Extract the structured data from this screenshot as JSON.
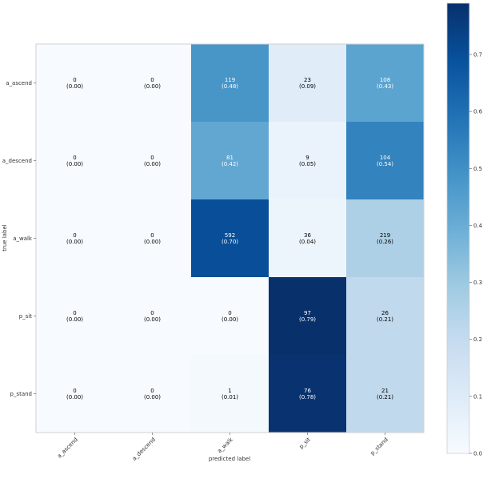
{
  "chart_data": {
    "type": "heatmap",
    "title": "",
    "xlabel": "predicted label",
    "ylabel": "true label",
    "x_categories": [
      "a_ascend",
      "a_descend",
      "a_walk",
      "p_sit",
      "p_stand"
    ],
    "y_categories": [
      "a_ascend",
      "a_descend",
      "a_walk",
      "p_sit",
      "p_stand"
    ],
    "counts": [
      [
        0,
        0,
        119,
        23,
        108
      ],
      [
        0,
        0,
        81,
        9,
        104
      ],
      [
        0,
        0,
        592,
        36,
        219
      ],
      [
        0,
        0,
        0,
        97,
        26
      ],
      [
        0,
        0,
        1,
        76,
        21
      ]
    ],
    "cell_labels": [
      [
        [
          "0",
          "(0.00)"
        ],
        [
          "0",
          "(0.00)"
        ],
        [
          "119",
          "(0.48)"
        ],
        [
          "23",
          "(0.09)"
        ],
        [
          "108",
          "(0.43)"
        ]
      ],
      [
        [
          "0",
          "(0.00)"
        ],
        [
          "0",
          "(0.00)"
        ],
        [
          "81",
          "(0.42)"
        ],
        [
          "9",
          "(0.05)"
        ],
        [
          "104",
          "(0.54)"
        ]
      ],
      [
        [
          "0",
          "(0.00)"
        ],
        [
          "0",
          "(0.00)"
        ],
        [
          "592",
          "(0.70)"
        ],
        [
          "36",
          "(0.04)"
        ],
        [
          "219",
          "(0.26)"
        ]
      ],
      [
        [
          "0",
          "(0.00)"
        ],
        [
          "0",
          "(0.00)"
        ],
        [
          "0",
          "(0.00)"
        ],
        [
          "97",
          "(0.79)"
        ],
        [
          "26",
          "(0.21)"
        ]
      ],
      [
        [
          "0",
          "(0.00)"
        ],
        [
          "0",
          "(0.00)"
        ],
        [
          "1",
          "(0.01)"
        ],
        [
          "76",
          "(0.78)"
        ],
        [
          "21",
          "(0.21)"
        ]
      ]
    ],
    "normalized": [
      [
        0.0,
        0.0,
        0.48,
        0.09,
        0.43
      ],
      [
        0.0,
        0.0,
        0.42,
        0.05,
        0.54
      ],
      [
        0.0,
        0.0,
        0.7,
        0.04,
        0.26
      ],
      [
        0.0,
        0.0,
        0.0,
        0.79,
        0.21
      ],
      [
        0.0,
        0.0,
        0.01,
        0.78,
        0.21
      ]
    ],
    "colorbar": {
      "range": [
        0.0,
        0.79
      ],
      "ticks": [
        0.0,
        0.1,
        0.2,
        0.3,
        0.4,
        0.5,
        0.6,
        0.7
      ],
      "tick_labels": [
        "0.0",
        "0.1",
        "0.2",
        "0.3",
        "0.4",
        "0.5",
        "0.6",
        "0.7"
      ]
    },
    "colormap": "Blues",
    "grid": false,
    "text_color_threshold": 0.4,
    "colors": {
      "dark_text": "#000000",
      "light_text": "#ffffff"
    }
  }
}
